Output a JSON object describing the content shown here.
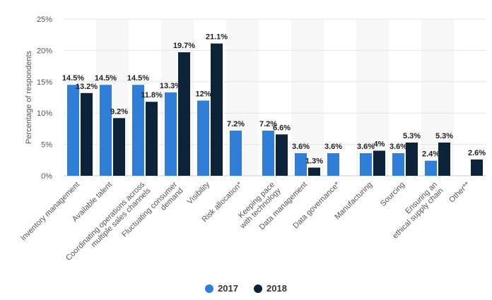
{
  "chart_data": {
    "type": "bar",
    "ylabel": "Percentage of respondents",
    "ylim": [
      0,
      25
    ],
    "yticks": [
      "0%",
      "5%",
      "10%",
      "15%",
      "20%",
      "25%"
    ],
    "grid": true,
    "legend_position": "bottom",
    "categories": [
      "Inventory management",
      "Available talent",
      "Coordinating operations across multiple sales channels",
      "Fluctuating consumer demand",
      "Visibility",
      "Risk allocation*",
      "Keeping pace with technology",
      "Data management",
      "Data governance*",
      "Manufacturing",
      "Sourcing",
      "Ensuring an ethical supply chain",
      "Other**"
    ],
    "series": [
      {
        "name": "2017",
        "color": "#2f7ed8",
        "values": [
          14.5,
          14.5,
          14.5,
          13.3,
          12,
          7.2,
          7.2,
          3.6,
          3.6,
          3.6,
          3.6,
          2.4,
          null
        ],
        "labels": [
          "14.5%",
          "14.5%",
          "14.5%",
          "13.3%",
          "12%",
          "7.2%",
          "7.2%",
          "3.6%",
          "3.6%",
          "3.6%",
          "3.6%",
          "2.4%",
          ""
        ]
      },
      {
        "name": "2018",
        "color": "#0d233a",
        "values": [
          13.2,
          9.2,
          11.8,
          19.7,
          21.1,
          null,
          6.6,
          1.3,
          null,
          4,
          5.3,
          5.3,
          2.6
        ],
        "labels": [
          "13.2%",
          "9.2%",
          "11.8%",
          "19.7%",
          "21.1%",
          "",
          "6.6%",
          "1.3%",
          "",
          "4%",
          "5.3%",
          "5.3%",
          "2.6%"
        ]
      }
    ]
  }
}
